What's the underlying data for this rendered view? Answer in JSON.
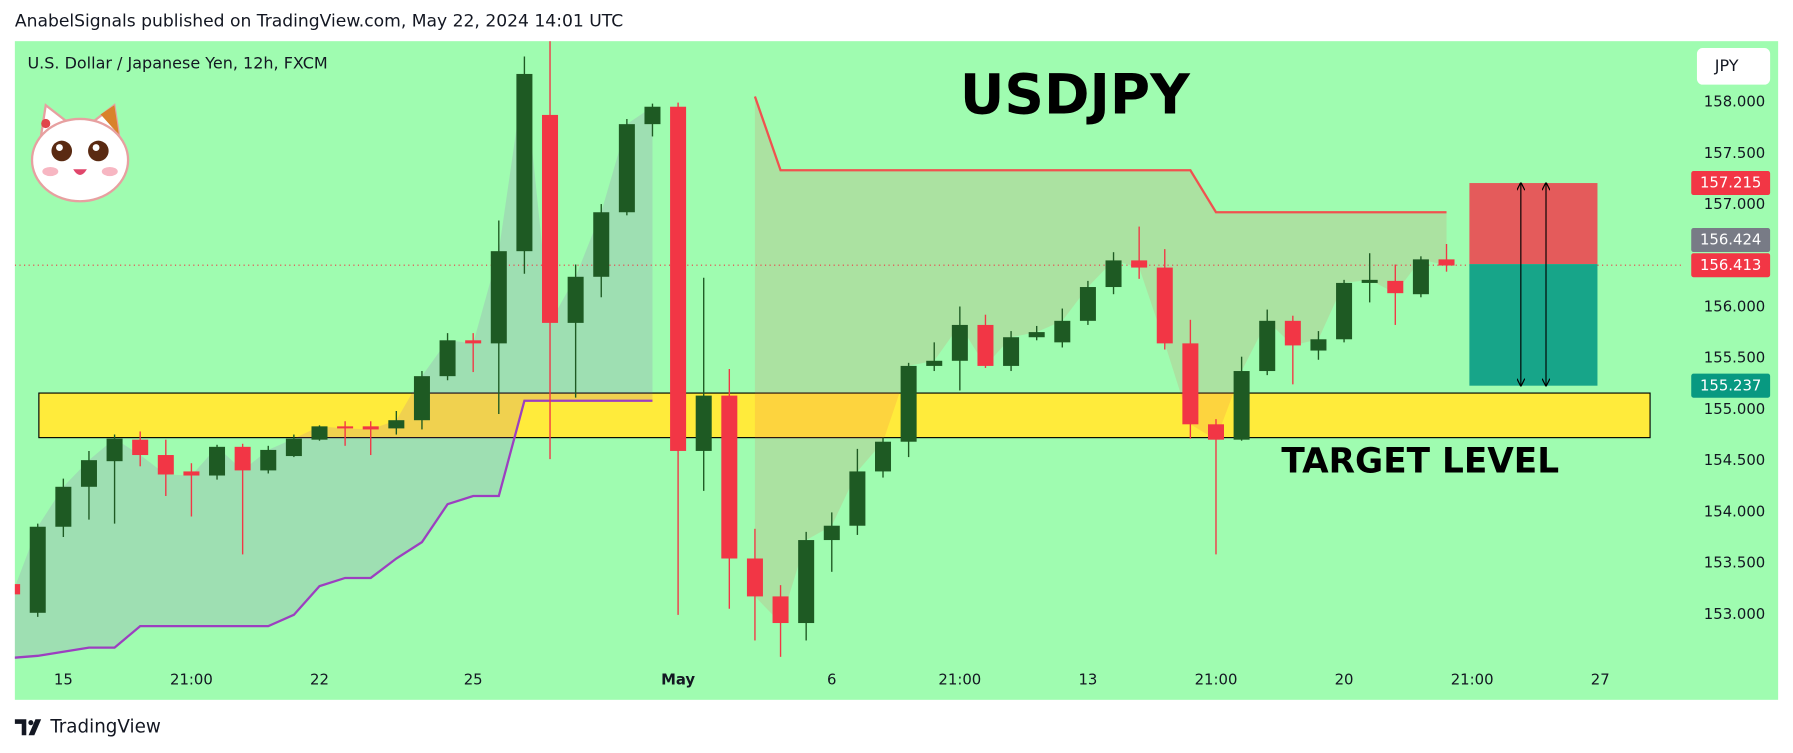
{
  "chart_data": {
    "type": "candlestick",
    "header": "AnabelSignals published on TradingView.com, May 22, 2024 14:01 UTC",
    "symbol": "U.S. Dollar / Japanese Yen, 12h, FXCM",
    "title": "USDJPY",
    "currency": "JPY",
    "brand": "TradingView",
    "background": "#9ffcb0",
    "up_color": "#1e5a23",
    "down_color": "#f23645",
    "categories": [
      null,
      null,
      "15",
      null,
      null,
      null,
      null,
      "21:00",
      null,
      null,
      null,
      null,
      "22",
      null,
      null,
      null,
      null,
      null,
      "25",
      null,
      null,
      null,
      null,
      null,
      null,
      null,
      "May",
      null,
      null,
      null,
      null,
      null,
      "6",
      null,
      null,
      null,
      null,
      "21:00",
      null,
      null,
      null,
      null,
      "13",
      null,
      null,
      null,
      null,
      "21:00",
      null,
      null,
      null,
      null,
      "20",
      null,
      null,
      null,
      null,
      "21:00",
      null,
      null,
      null,
      null,
      "27",
      null,
      null,
      null
    ],
    "open": [
      153.3,
      153.02,
      153.86,
      154.25,
      154.5,
      154.71,
      154.56,
      154.4,
      154.36,
      154.64,
      154.41,
      154.55,
      154.71,
      154.84,
      154.84,
      154.82,
      154.9,
      155.33,
      155.68,
      155.65,
      156.55,
      157.88,
      155.85,
      156.3,
      156.93,
      157.79,
      157.96,
      154.6,
      155.14,
      153.55,
      153.18,
      152.92,
      153.73,
      153.87,
      154.4,
      154.69,
      155.43,
      155.48,
      155.83,
      155.43,
      155.71,
      155.66,
      155.87,
      156.2,
      156.46,
      156.39,
      155.65,
      154.86,
      154.71,
      155.38,
      155.87,
      155.58,
      155.69,
      156.24,
      156.26,
      156.13,
      156.47,
      null,
      null,
      null,
      null,
      null,
      null,
      null,
      null,
      null
    ],
    "high": [
      153.31,
      153.89,
      154.33,
      154.6,
      154.76,
      154.79,
      154.71,
      154.48,
      154.66,
      154.67,
      154.65,
      154.76,
      154.85,
      154.89,
      154.89,
      154.99,
      155.38,
      155.75,
      155.75,
      156.85,
      158.45,
      158.6,
      156.42,
      157.01,
      157.84,
      157.99,
      158.0,
      156.29,
      155.4,
      153.84,
      153.29,
      153.81,
      154.0,
      154.62,
      154.73,
      155.46,
      155.66,
      156.01,
      155.93,
      155.77,
      155.82,
      155.99,
      156.26,
      156.54,
      156.79,
      156.57,
      155.88,
      154.91,
      155.52,
      155.98,
      155.92,
      155.77,
      156.27,
      156.53,
      156.42,
      156.5,
      156.62,
      null,
      null,
      null,
      null,
      null,
      null,
      null,
      null,
      null
    ],
    "low": [
      153.19,
      152.98,
      153.76,
      153.93,
      153.89,
      154.45,
      154.16,
      153.96,
      154.32,
      153.59,
      154.38,
      154.54,
      154.7,
      154.65,
      154.56,
      154.76,
      154.81,
      155.29,
      155.37,
      154.96,
      156.33,
      154.52,
      155.12,
      156.1,
      156.9,
      157.67,
      153.0,
      154.21,
      153.06,
      152.75,
      152.59,
      152.75,
      153.42,
      153.78,
      154.34,
      154.54,
      155.38,
      155.19,
      155.41,
      155.38,
      155.68,
      155.61,
      155.83,
      156.13,
      156.28,
      155.59,
      154.72,
      153.59,
      154.7,
      155.34,
      155.25,
      155.49,
      155.66,
      156.05,
      155.83,
      156.1,
      156.35,
      null,
      null,
      null,
      null,
      null,
      null,
      null,
      null,
      null
    ],
    "close": [
      153.2,
      153.86,
      154.25,
      154.51,
      154.72,
      154.56,
      154.37,
      154.36,
      154.64,
      154.41,
      154.61,
      154.72,
      154.84,
      154.82,
      154.81,
      154.9,
      155.33,
      155.68,
      155.65,
      156.55,
      158.28,
      155.85,
      156.3,
      156.93,
      157.79,
      157.96,
      154.6,
      155.14,
      153.55,
      153.18,
      152.92,
      153.73,
      153.87,
      154.4,
      154.69,
      155.43,
      155.48,
      155.83,
      155.43,
      155.71,
      155.76,
      155.87,
      156.2,
      156.46,
      156.39,
      155.65,
      154.86,
      154.71,
      155.38,
      155.87,
      155.63,
      155.69,
      156.24,
      156.27,
      156.14,
      156.47,
      156.41,
      null,
      null,
      null,
      null,
      null,
      null,
      null,
      null,
      null
    ],
    "last": 156.413,
    "ylim": [
      152.55,
      158.6
    ],
    "yticks": [
      {
        "value": 153,
        "label": "153.000"
      },
      {
        "value": 153.5,
        "label": "153.500"
      },
      {
        "value": 154,
        "label": "154.000"
      },
      {
        "value": 154.5,
        "label": "154.500"
      },
      {
        "value": 155,
        "label": "155.000"
      },
      {
        "value": 155.5,
        "label": "155.500"
      },
      {
        "value": 156,
        "label": "156.000"
      },
      {
        "value": 157,
        "label": "157.000"
      },
      {
        "value": 157.5,
        "label": "157.500"
      },
      {
        "value": 158,
        "label": "158.000"
      }
    ],
    "overlays": [
      {
        "color": "#f0524f",
        "values": [
          null,
          null,
          null,
          null,
          null,
          null,
          null,
          null,
          null,
          null,
          null,
          null,
          null,
          null,
          null,
          null,
          null,
          null,
          null,
          null,
          null,
          null,
          null,
          null,
          null,
          null,
          null,
          null,
          null,
          158.06,
          157.34,
          157.34,
          157.34,
          157.34,
          157.34,
          157.34,
          157.34,
          157.34,
          157.34,
          157.34,
          157.34,
          157.34,
          157.34,
          157.34,
          157.34,
          157.34,
          157.34,
          156.93,
          156.93,
          156.93,
          156.93,
          156.93,
          156.93,
          156.93,
          156.93,
          156.93,
          156.93,
          null,
          null,
          null,
          null,
          null,
          null,
          null,
          null,
          null
        ]
      },
      {
        "color": "#9c3fc0",
        "values": [
          152.58,
          152.6,
          152.64,
          152.68,
          152.68,
          152.89,
          152.89,
          152.89,
          152.89,
          152.89,
          152.89,
          153.0,
          153.28,
          153.36,
          153.36,
          153.55,
          153.71,
          154.08,
          154.16,
          154.16,
          155.09,
          155.09,
          155.09,
          155.09,
          155.09,
          155.09,
          null,
          null,
          null,
          null,
          null,
          null,
          null,
          null,
          null,
          null,
          null,
          null,
          null,
          null,
          null,
          null,
          null,
          null,
          null,
          null,
          null,
          null,
          null,
          null,
          null,
          null,
          null,
          null,
          null,
          null,
          null,
          null,
          null,
          null,
          null,
          null,
          null,
          null,
          null,
          null
        ]
      }
    ],
    "zone": {
      "label": "TARGET LEVEL",
      "low": 154.73,
      "high": 155.165,
      "color": "#ffeb3b"
    },
    "position": {
      "stop": 157.215,
      "entry": 156.424,
      "target": 155.237
    }
  }
}
